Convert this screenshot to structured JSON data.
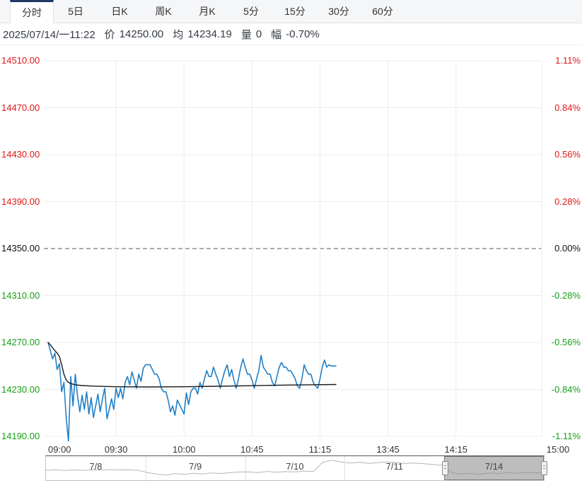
{
  "tabs": {
    "items": [
      {
        "label": "分时",
        "name": "tab-intraday",
        "selected": true
      },
      {
        "label": "5日",
        "name": "tab-5day",
        "selected": false
      },
      {
        "label": "日K",
        "name": "tab-daily-k",
        "selected": false
      },
      {
        "label": "周K",
        "name": "tab-weekly-k",
        "selected": false
      },
      {
        "label": "月K",
        "name": "tab-monthly-k",
        "selected": false
      },
      {
        "label": "5分",
        "name": "tab-5min",
        "selected": false
      },
      {
        "label": "15分",
        "name": "tab-15min",
        "selected": false
      },
      {
        "label": "30分",
        "name": "tab-30min",
        "selected": false
      },
      {
        "label": "60分",
        "name": "tab-60min",
        "selected": false
      }
    ]
  },
  "info_bar": {
    "datetime": "2025/07/14/一11:22",
    "price_label": "价",
    "price": "14250.00",
    "avg_label": "均",
    "avg": "14234.19",
    "volume_label": "量",
    "volume": "0",
    "change_label": "幅",
    "change": "-0.70%"
  },
  "colors": {
    "up": "#e01616",
    "down": "#16a016",
    "neutral": "#111111",
    "price_line": "#2080c8",
    "avg_line": "#1a1a1a",
    "grid": "#ececec",
    "baseline": "#555555",
    "nav_line": "#b5b5b5"
  },
  "chart_data": {
    "type": "line",
    "title": "",
    "y_axis_left": {
      "values": [
        14510,
        14470,
        14430,
        14390,
        14350,
        14310,
        14270,
        14230,
        14190
      ],
      "labels": [
        "14510.00",
        "14470.00",
        "14430.00",
        "14390.00",
        "14350.00",
        "14310.00",
        "14270.00",
        "14230.00",
        "14190.00"
      ]
    },
    "y_axis_right": {
      "labels": [
        "1.11%",
        "0.84%",
        "0.56%",
        "0.28%",
        "0.00%",
        "-0.28%",
        "-0.56%",
        "-0.84%",
        "-1.11%"
      ]
    },
    "baseline_price": 14350,
    "ylim": [
      14190,
      14510
    ],
    "x_axis": {
      "labels": [
        "09:00",
        "09:30",
        "10:00",
        "10:45",
        "11:15",
        "13:45",
        "14:15",
        "15:00"
      ],
      "tick_minutes": [
        0,
        30,
        60,
        90,
        120,
        150,
        180,
        225
      ],
      "total_minutes": 225
    },
    "series": [
      {
        "name": "price",
        "color_key": "price_line",
        "width": 1.6,
        "points": [
          [
            0,
            14270
          ],
          [
            1,
            14263
          ],
          [
            2,
            14256
          ],
          [
            3,
            14261
          ],
          [
            4,
            14247
          ],
          [
            5,
            14252
          ],
          [
            6,
            14228
          ],
          [
            7,
            14236
          ],
          [
            8,
            14206
          ],
          [
            9,
            14186
          ],
          [
            10,
            14241
          ],
          [
            11,
            14216
          ],
          [
            12,
            14243
          ],
          [
            13,
            14224
          ],
          [
            14,
            14211
          ],
          [
            15,
            14225
          ],
          [
            16,
            14213
          ],
          [
            17,
            14228
          ],
          [
            18,
            14209
          ],
          [
            19,
            14223
          ],
          [
            20,
            14206
          ],
          [
            21,
            14216
          ],
          [
            22,
            14226
          ],
          [
            23,
            14211
          ],
          [
            24,
            14222
          ],
          [
            25,
            14231
          ],
          [
            26,
            14205
          ],
          [
            27,
            14213
          ],
          [
            28,
            14222
          ],
          [
            29,
            14213
          ],
          [
            30,
            14231
          ],
          [
            31,
            14223
          ],
          [
            32,
            14231
          ],
          [
            33,
            14222
          ],
          [
            34,
            14236
          ],
          [
            35,
            14241
          ],
          [
            36,
            14234
          ],
          [
            37,
            14245
          ],
          [
            38,
            14238
          ],
          [
            39,
            14231
          ],
          [
            40,
            14243
          ],
          [
            41,
            14237
          ],
          [
            42,
            14248
          ],
          [
            43,
            14251
          ],
          [
            44,
            14251
          ],
          [
            45,
            14251
          ],
          [
            46,
            14247
          ],
          [
            47,
            14243
          ],
          [
            48,
            14243
          ],
          [
            49,
            14239
          ],
          [
            50,
            14231
          ],
          [
            51,
            14228
          ],
          [
            52,
            14228
          ],
          [
            53,
            14221
          ],
          [
            54,
            14211
          ],
          [
            55,
            14216
          ],
          [
            56,
            14208
          ],
          [
            57,
            14221
          ],
          [
            58,
            14217
          ],
          [
            59,
            14213
          ],
          [
            60,
            14209
          ],
          [
            61,
            14227
          ],
          [
            62,
            14217
          ],
          [
            63,
            14228
          ],
          [
            64,
            14231
          ],
          [
            65,
            14231
          ],
          [
            66,
            14226
          ],
          [
            67,
            14236
          ],
          [
            68,
            14231
          ],
          [
            69,
            14239
          ],
          [
            70,
            14246
          ],
          [
            71,
            14241
          ],
          [
            72,
            14241
          ],
          [
            73,
            14249
          ],
          [
            74,
            14243
          ],
          [
            75,
            14238
          ],
          [
            76,
            14231
          ],
          [
            77,
            14239
          ],
          [
            78,
            14246
          ],
          [
            79,
            14251
          ],
          [
            80,
            14241
          ],
          [
            81,
            14247
          ],
          [
            82,
            14238
          ],
          [
            83,
            14231
          ],
          [
            84,
            14239
          ],
          [
            85,
            14249
          ],
          [
            86,
            14256
          ],
          [
            87,
            14249
          ],
          [
            88,
            14243
          ],
          [
            89,
            14243
          ],
          [
            90,
            14238
          ],
          [
            91,
            14231
          ],
          [
            92,
            14239
          ],
          [
            93,
            14246
          ],
          [
            94,
            14259
          ],
          [
            95,
            14249
          ],
          [
            96,
            14246
          ],
          [
            97,
            14243
          ],
          [
            98,
            14243
          ],
          [
            99,
            14236
          ],
          [
            100,
            14233
          ],
          [
            101,
            14241
          ],
          [
            102,
            14249
          ],
          [
            103,
            14253
          ],
          [
            104,
            14249
          ],
          [
            105,
            14249
          ],
          [
            106,
            14246
          ],
          [
            107,
            14246
          ],
          [
            108,
            14243
          ],
          [
            109,
            14239
          ],
          [
            110,
            14233
          ],
          [
            111,
            14231
          ],
          [
            112,
            14239
          ],
          [
            113,
            14251
          ],
          [
            114,
            14246
          ],
          [
            115,
            14243
          ],
          [
            116,
            14243
          ],
          [
            117,
            14236
          ],
          [
            118,
            14233
          ],
          [
            119,
            14231
          ],
          [
            120,
            14239
          ],
          [
            121,
            14249
          ],
          [
            122,
            14255
          ],
          [
            123,
            14249
          ],
          [
            124,
            14251
          ],
          [
            125,
            14250
          ],
          [
            126,
            14250
          ],
          [
            127,
            14250
          ]
        ]
      },
      {
        "name": "average",
        "color_key": "avg_line",
        "width": 1.4,
        "points": [
          [
            0,
            14270
          ],
          [
            1,
            14268
          ],
          [
            2,
            14265.5
          ],
          [
            3,
            14263
          ],
          [
            4,
            14261
          ],
          [
            5,
            14258
          ],
          [
            6,
            14251
          ],
          [
            7,
            14243
          ],
          [
            8,
            14238
          ],
          [
            9,
            14236
          ],
          [
            10,
            14235
          ],
          [
            12,
            14234
          ],
          [
            15,
            14233.3
          ],
          [
            20,
            14232.8
          ],
          [
            30,
            14232.3
          ],
          [
            45,
            14232.1
          ],
          [
            60,
            14232.3
          ],
          [
            75,
            14232.7
          ],
          [
            90,
            14233.2
          ],
          [
            105,
            14233.7
          ],
          [
            115,
            14234
          ],
          [
            127,
            14234.2
          ]
        ]
      }
    ]
  },
  "navigator": {
    "dates": [
      "7/8",
      "7/9",
      "7/10",
      "7/11",
      "7/14"
    ],
    "selected_index": 4,
    "sparkline": [
      0.42,
      0.45,
      0.41,
      0.44,
      0.42,
      0.45,
      0.43,
      0.46,
      0.44,
      0.45,
      0.42,
      0.3,
      0.22,
      0.16,
      0.24,
      0.2,
      0.26,
      0.22,
      0.28,
      0.25,
      0.3,
      0.33,
      0.34,
      0.3,
      0.36,
      0.32,
      0.35,
      0.33,
      0.38,
      0.36,
      0.85,
      0.97,
      0.88,
      0.82,
      0.86,
      0.8,
      0.84,
      0.88,
      0.84,
      0.8,
      0.82,
      0.78,
      0.74,
      0.7,
      0.3,
      0.22,
      0.26,
      0.2,
      0.28,
      0.24,
      0.3,
      0.26,
      0.3,
      0.28,
      0.3
    ]
  }
}
